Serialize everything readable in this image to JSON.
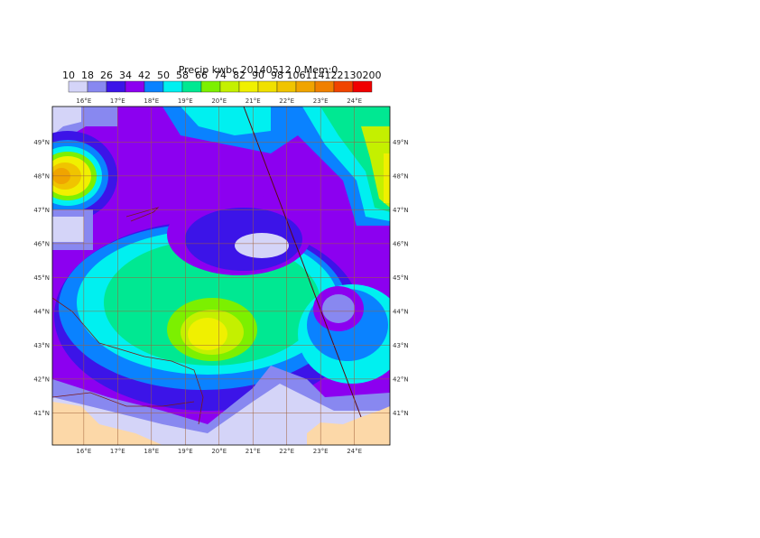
{
  "title": "Precip kwbc 20140512 0 Mem:0",
  "colorbar": {
    "levels": [
      10,
      18,
      26,
      34,
      42,
      50,
      58,
      66,
      74,
      82,
      90,
      98,
      106,
      114,
      122,
      130,
      200
    ],
    "colors": [
      "#d4d4f8",
      "#8888f0",
      "#3c14e8",
      "#8c00f0",
      "#0a82ff",
      "#00f0f0",
      "#00e892",
      "#7cf000",
      "#c4f000",
      "#f0f000",
      "#f0e000",
      "#f0c400",
      "#f0a400",
      "#f08000",
      "#f04400",
      "#f00000"
    ]
  },
  "map": {
    "lon_ticks": [
      {
        "value": 16,
        "label": "16°E"
      },
      {
        "value": 17,
        "label": "17°E"
      },
      {
        "value": 18,
        "label": "18°E"
      },
      {
        "value": 19,
        "label": "19°E"
      },
      {
        "value": 20,
        "label": "20°E"
      },
      {
        "value": 21,
        "label": "21°E"
      },
      {
        "value": 22,
        "label": "22°E"
      },
      {
        "value": 23,
        "label": "23°E"
      },
      {
        "value": 24,
        "label": "24°E"
      }
    ],
    "lat_ticks": [
      {
        "value": 49,
        "label": "49°N"
      },
      {
        "value": 48,
        "label": "48°N"
      },
      {
        "value": 47,
        "label": "47°N"
      },
      {
        "value": 46,
        "label": "46°N"
      },
      {
        "value": 45,
        "label": "45°N"
      },
      {
        "value": 44,
        "label": "44°N"
      },
      {
        "value": 43,
        "label": "43°N"
      },
      {
        "value": 42,
        "label": "42°N"
      },
      {
        "value": 41,
        "label": "41°N"
      }
    ],
    "lonlim": [
      15.07,
      25.05
    ],
    "latlim": [
      40.05,
      50.05
    ]
  }
}
